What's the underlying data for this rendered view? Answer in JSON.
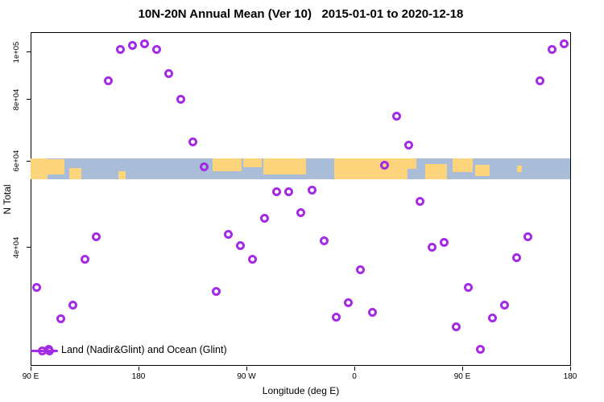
{
  "chart_data": {
    "type": "scatter",
    "title": "10N-20N Annual Mean (Ver 10)   2015-01-01 to 2020-12-18",
    "xlabel": "Longitude (deg E)",
    "ylabel": "N Total",
    "y_scale": "log10",
    "x_axis": {
      "start_deg_e": 90,
      "wrap_deg": 450,
      "ticks": [
        {
          "u": 90,
          "label": "90 E"
        },
        {
          "u": 180,
          "label": "180"
        },
        {
          "u": 270,
          "label": "90 W"
        },
        {
          "u": 360,
          "label": "0"
        },
        {
          "u": 450,
          "label": "90 E"
        },
        {
          "u": 540,
          "label": "180"
        }
      ]
    },
    "y_axis": {
      "ticks": [
        {
          "v": 100000,
          "label": "1e+05"
        },
        {
          "v": 80000,
          "label": "8e+04"
        },
        {
          "v": 60000,
          "label": "6e+04"
        },
        {
          "v": 40000,
          "label": "4e+04"
        }
      ],
      "approx_range": [
        22000,
        110000
      ]
    },
    "legend": {
      "label": "Land (Nadir&Glint) and Ocean (Glint)",
      "position": "bottom-left"
    },
    "colors": {
      "marker": "#a32be6",
      "ocean": "#a9bdd9",
      "land": "#fbd47c",
      "axis": "#000000"
    },
    "map_strip": {
      "description_visible": "world land/ocean band across plot",
      "land_segments": [
        {
          "u0": 90,
          "u1": 104,
          "t": 0.0,
          "h": 1.0
        },
        {
          "u0": 104,
          "u1": 118,
          "t": 0.05,
          "h": 0.72
        },
        {
          "u0": 122,
          "u1": 132,
          "t": 0.45,
          "h": 0.55
        },
        {
          "u0": 163,
          "u1": 169,
          "t": 0.6,
          "h": 0.4
        },
        {
          "u0": 242,
          "u1": 266,
          "t": 0.0,
          "h": 0.6
        },
        {
          "u0": 267,
          "u1": 283,
          "t": 0.0,
          "h": 0.42
        },
        {
          "u0": 284,
          "u1": 320,
          "t": 0.0,
          "h": 0.78
        },
        {
          "u0": 343,
          "u1": 404,
          "t": 0.0,
          "h": 1.0
        },
        {
          "u0": 404,
          "u1": 412,
          "t": 0.0,
          "h": 0.5
        },
        {
          "u0": 419,
          "u1": 437,
          "t": 0.25,
          "h": 0.75
        },
        {
          "u0": 442,
          "u1": 459,
          "t": 0.0,
          "h": 0.65
        },
        {
          "u0": 461,
          "u1": 473,
          "t": 0.3,
          "h": 0.55
        },
        {
          "u0": 496,
          "u1": 500,
          "t": 0.35,
          "h": 0.3
        }
      ]
    },
    "series": [
      {
        "name": "Land (Nadir&Glint) and Ocean (Glint)",
        "points": [
          {
            "u": 95,
            "n": 33200
          },
          {
            "u": 105,
            "n": 24800
          },
          {
            "u": 115,
            "n": 28600
          },
          {
            "u": 125,
            "n": 30500
          },
          {
            "u": 135,
            "n": 37900
          },
          {
            "u": 145,
            "n": 42000
          },
          {
            "u": 155,
            "n": 87200
          },
          {
            "u": 165,
            "n": 101000
          },
          {
            "u": 175,
            "n": 103000
          },
          {
            "u": 185,
            "n": 104000
          },
          {
            "u": 195,
            "n": 101000
          },
          {
            "u": 205,
            "n": 90200
          },
          {
            "u": 215,
            "n": 80000
          },
          {
            "u": 225,
            "n": 65700
          },
          {
            "u": 235,
            "n": 58300
          },
          {
            "u": 245,
            "n": 32500
          },
          {
            "u": 255,
            "n": 42600
          },
          {
            "u": 265,
            "n": 40400
          },
          {
            "u": 275,
            "n": 37900
          },
          {
            "u": 285,
            "n": 45900
          },
          {
            "u": 295,
            "n": 52000
          },
          {
            "u": 305,
            "n": 52000
          },
          {
            "u": 315,
            "n": 47000
          },
          {
            "u": 325,
            "n": 52400
          },
          {
            "u": 335,
            "n": 41200
          },
          {
            "u": 345,
            "n": 28800
          },
          {
            "u": 355,
            "n": 30900
          },
          {
            "u": 365,
            "n": 36000
          },
          {
            "u": 375,
            "n": 29500
          },
          {
            "u": 385,
            "n": 58900
          },
          {
            "u": 395,
            "n": 73900
          },
          {
            "u": 405,
            "n": 64500
          },
          {
            "u": 415,
            "n": 49700
          },
          {
            "u": 425,
            "n": 40000
          },
          {
            "u": 435,
            "n": 41000
          },
          {
            "u": 445,
            "n": 27600
          },
          {
            "u": 455,
            "n": 33200
          },
          {
            "u": 465,
            "n": 24800
          },
          {
            "u": 475,
            "n": 28700
          },
          {
            "u": 485,
            "n": 30500
          },
          {
            "u": 495,
            "n": 38100
          },
          {
            "u": 505,
            "n": 42100
          },
          {
            "u": 515,
            "n": 87200
          },
          {
            "u": 525,
            "n": 101000
          },
          {
            "u": 535,
            "n": 104000
          }
        ]
      }
    ]
  }
}
